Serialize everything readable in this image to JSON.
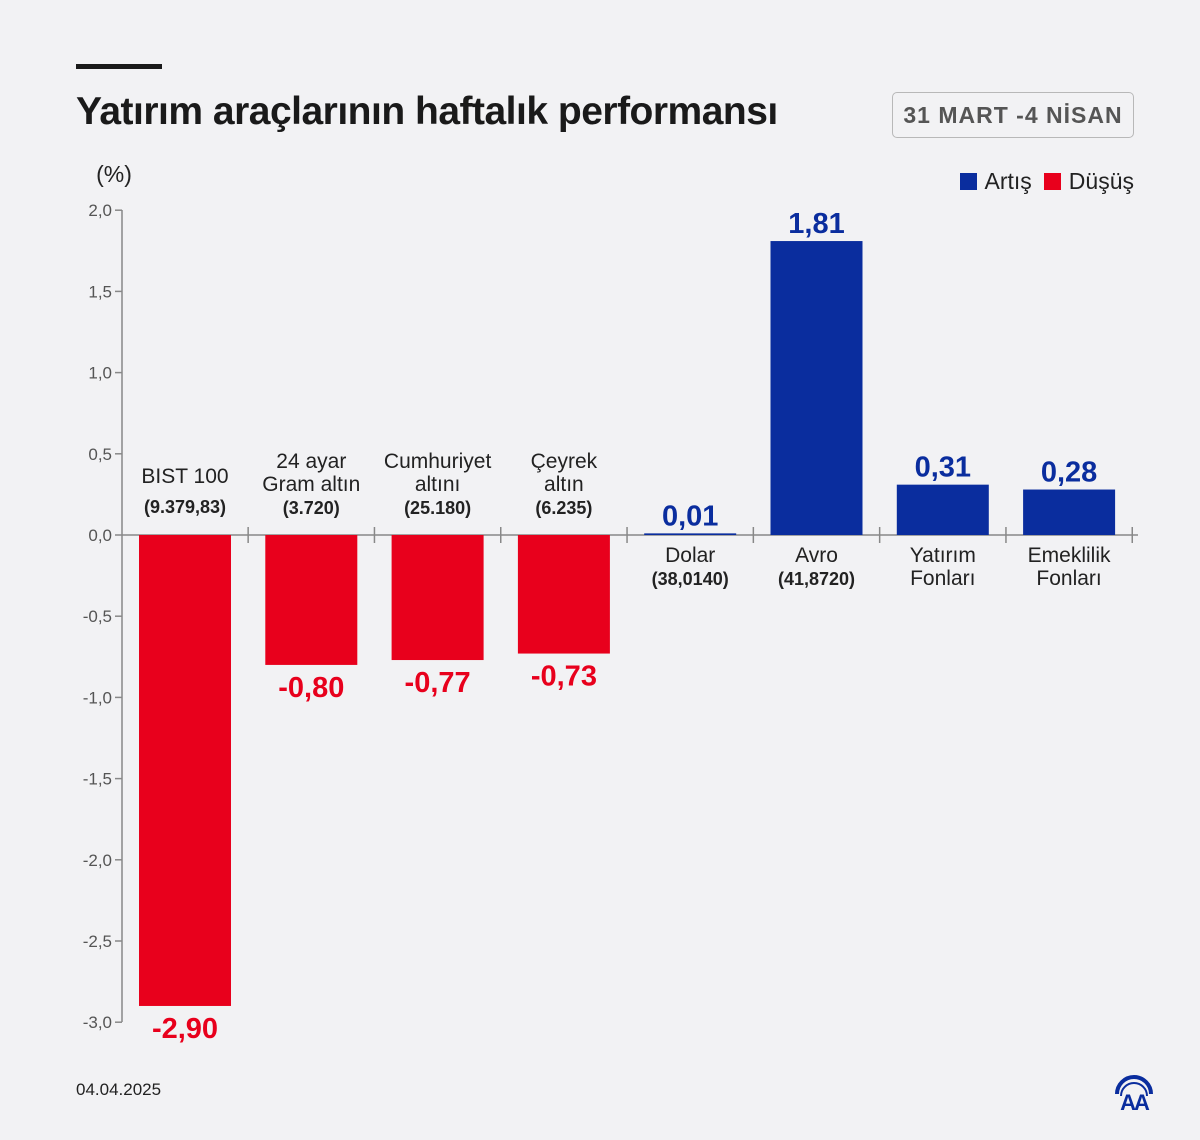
{
  "header": {
    "title": "Yatırım araçlarının haftalık performansı",
    "date_range": "31 MART -4 NİSAN"
  },
  "legend": [
    {
      "label": "Artış",
      "color": "#0a2d9e"
    },
    {
      "label": "Düşüş",
      "color": "#e8001c"
    }
  ],
  "footer": {
    "date": "04.04.2025",
    "logo": "AA"
  },
  "chart_data": {
    "type": "bar",
    "ylabel": "(%)",
    "ylim": [
      -3.0,
      2.0
    ],
    "yticks": [
      "2,0",
      "1,5",
      "1,0",
      "0,5",
      "0,0",
      "-0,5",
      "-1,0",
      "-1,5",
      "-2,0",
      "-2,5",
      "-3,0"
    ],
    "ytick_values": [
      2.0,
      1.5,
      1.0,
      0.5,
      0.0,
      -0.5,
      -1.0,
      -1.5,
      -2.0,
      -2.5,
      -3.0
    ],
    "grid": false,
    "legend_position": "top-right",
    "categories": [
      [
        "BIST 100",
        "(9.379,83)"
      ],
      [
        "24 ayar",
        "Gram altın",
        "(3.720)"
      ],
      [
        "Cumhuriyet",
        "altını",
        "(25.180)"
      ],
      [
        "Çeyrek",
        "altın",
        "(6.235)"
      ],
      [
        "Dolar",
        "(38,0140)"
      ],
      [
        "Avro",
        "(41,8720)"
      ],
      [
        "Yatırım",
        "Fonları"
      ],
      [
        "Emeklilik",
        "Fonları"
      ]
    ],
    "values": [
      -2.9,
      -0.8,
      -0.77,
      -0.73,
      0.01,
      1.81,
      0.31,
      0.28
    ],
    "value_labels": [
      "-2,90",
      "-0,80",
      "-0,77",
      "-0,73",
      "0,01",
      "1,81",
      "0,31",
      "0,28"
    ],
    "colors": {
      "positive": "#0a2d9e",
      "negative": "#e8001c"
    }
  }
}
